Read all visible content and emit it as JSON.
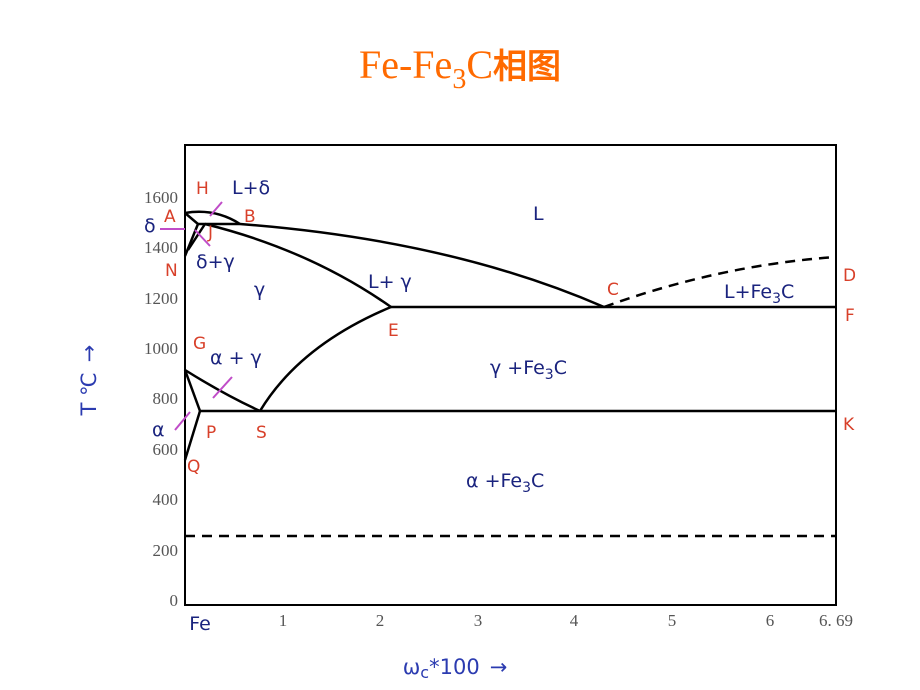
{
  "title": {
    "text1": "Fe-Fe",
    "sub": "3",
    "text2": "C",
    "cjk": "相图"
  },
  "y_axis": {
    "label": "T ℃",
    "arrow": "→",
    "ticks": [
      "0",
      "200",
      "400",
      "600",
      "800",
      "1000",
      "1200",
      "1400",
      "1600"
    ]
  },
  "x_axis": {
    "omega": "ω",
    "sub": "c",
    "rest": "*100",
    "arrow": "→",
    "ticks": [
      "Fe",
      "1",
      "2",
      "3",
      "4",
      "5",
      "6",
      "6. 69"
    ]
  },
  "points": [
    "H",
    "A",
    "B",
    "J",
    "N",
    "C",
    "D",
    "F",
    "E",
    "G",
    "P",
    "S",
    "K",
    "Q"
  ],
  "regions": [
    "L+δ",
    "L",
    "δ",
    "δ+γ",
    "γ",
    "L+ γ",
    "α + γ",
    "α"
  ],
  "fe3c_regions": [
    {
      "a": "L+Fe",
      "sub": "3",
      "b": "C"
    },
    {
      "a": "γ +Fe",
      "sub": "3",
      "b": "C"
    },
    {
      "a": "α +Fe",
      "sub": "3",
      "b": "C"
    }
  ]
}
